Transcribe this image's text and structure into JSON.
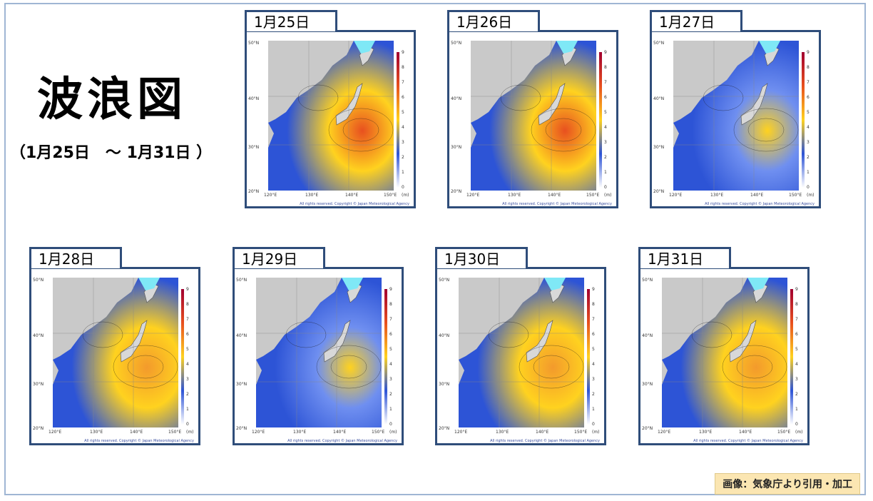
{
  "title": "波浪図",
  "date_range": "（1月25日　～ 1月31日 ）",
  "credit": "画像：気象庁より引用・加工",
  "copyright": "All rights reserved. Copyright © Japan Meteorological Agency",
  "lat_labels": [
    "50°N",
    "40°N",
    "30°N",
    "20°N"
  ],
  "lon_labels": [
    "120°E",
    "130°E",
    "140°E",
    "150°E"
  ],
  "colorbar_labels": [
    "9",
    "8",
    "7",
    "6",
    "5",
    "4",
    "3",
    "2",
    "1",
    "0"
  ],
  "colorbar_unit": "(m)",
  "colors": {
    "frame": "#2f4d7a",
    "land": "#c9c9c9",
    "sea_low": "#2d54d6",
    "sea_mid": "#ffd21f",
    "sea_high": "#e8501f",
    "ice": "#7fe8f6"
  },
  "days": [
    {
      "label": "1月25日",
      "intensity": "high"
    },
    {
      "label": "1月26日",
      "intensity": "high"
    },
    {
      "label": "1月27日",
      "intensity": "low"
    },
    {
      "label": "1月28日",
      "intensity": "medium"
    },
    {
      "label": "1月29日",
      "intensity": "low"
    },
    {
      "label": "1月30日",
      "intensity": "medium"
    },
    {
      "label": "1月31日",
      "intensity": "medium"
    }
  ]
}
